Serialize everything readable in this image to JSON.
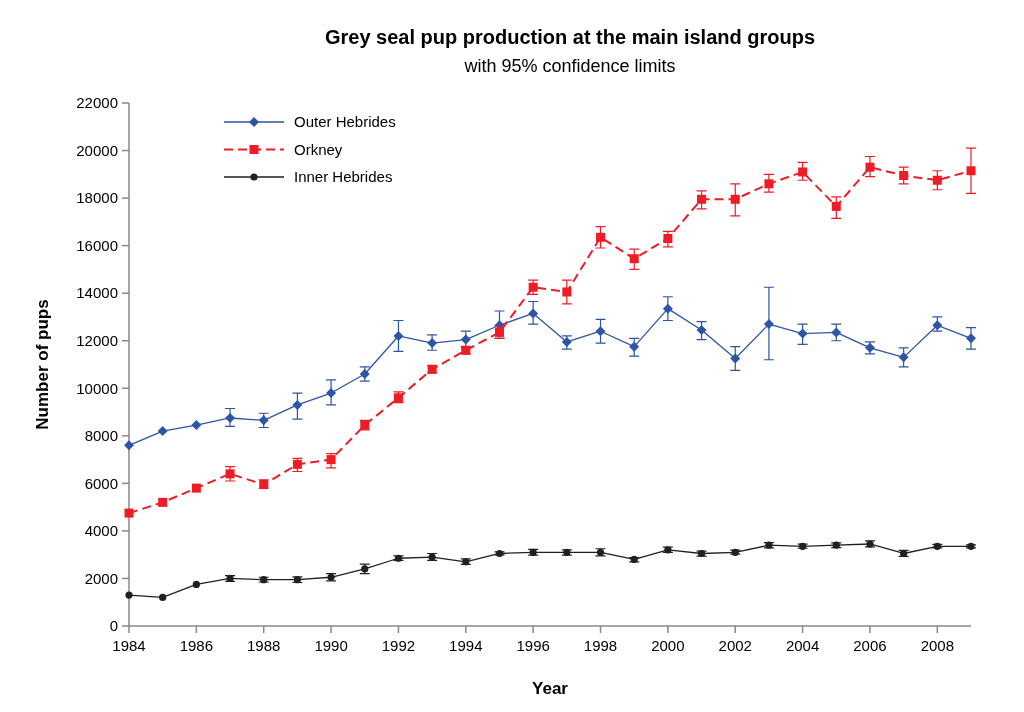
{
  "chart_data": {
    "type": "line",
    "title": "Grey seal pup production at the main island groups",
    "subtitle": "with 95% confidence limits",
    "xlabel": "Year",
    "ylabel": "Number of pups",
    "x": [
      1984,
      1985,
      1986,
      1987,
      1988,
      1989,
      1990,
      1991,
      1992,
      1993,
      1994,
      1995,
      1996,
      1997,
      1998,
      1999,
      2000,
      2001,
      2002,
      2003,
      2004,
      2005,
      2006,
      2007,
      2008,
      2009
    ],
    "xlim": [
      1984,
      2009
    ],
    "xticks": [
      1984,
      1986,
      1988,
      1990,
      1992,
      1994,
      1996,
      1998,
      2000,
      2002,
      2004,
      2006,
      2008
    ],
    "ylim": [
      0,
      22000
    ],
    "yticks": [
      0,
      2000,
      4000,
      6000,
      8000,
      10000,
      12000,
      14000,
      16000,
      18000,
      20000,
      22000
    ],
    "grid": false,
    "legend": "top left",
    "series": [
      {
        "name": "Outer Hebrides",
        "color": "#2e55a5",
        "marker": "diamond",
        "line_style": "solid",
        "values": [
          7600,
          8200,
          8450,
          8750,
          8650,
          9300,
          9800,
          10600,
          12200,
          11900,
          12050,
          12650,
          13150,
          11950,
          12400,
          11750,
          13350,
          12450,
          11250,
          12700,
          12300,
          12350,
          11700,
          11300,
          12650,
          12100
        ],
        "errors": [
          null,
          null,
          null,
          [
            8400,
            9150
          ],
          [
            8350,
            8950
          ],
          [
            8700,
            9800
          ],
          [
            9300,
            10350
          ],
          [
            10300,
            10900
          ],
          [
            11550,
            12850
          ],
          [
            11600,
            12250
          ],
          [
            11700,
            12400
          ],
          [
            12100,
            13250
          ],
          [
            12700,
            13650
          ],
          [
            11650,
            12200
          ],
          [
            11900,
            12900
          ],
          [
            11350,
            12100
          ],
          [
            12850,
            13850
          ],
          [
            12050,
            12800
          ],
          [
            10750,
            11750
          ],
          [
            11200,
            14250
          ],
          [
            11850,
            12700
          ],
          [
            12000,
            12700
          ],
          [
            11450,
            11950
          ],
          [
            10900,
            11700
          ],
          [
            12400,
            13000
          ],
          [
            11650,
            12550
          ]
        ]
      },
      {
        "name": "Orkney",
        "color": "#ee1c25",
        "marker": "square",
        "line_style": "dashed",
        "values": [
          4750,
          5200,
          5800,
          6400,
          5950,
          6800,
          7000,
          8450,
          9600,
          10800,
          11600,
          12350,
          14250,
          14050,
          16350,
          15450,
          16300,
          17950,
          17950,
          18600,
          19100,
          17650,
          19300,
          18950,
          18750,
          19150
        ],
        "errors": [
          null,
          null,
          null,
          [
            6100,
            6700
          ],
          [
            5800,
            6150
          ],
          [
            6500,
            7050
          ],
          [
            6650,
            7250
          ],
          [
            8250,
            8650
          ],
          [
            9400,
            9850
          ],
          [
            10650,
            10950
          ],
          [
            11450,
            11750
          ],
          [
            12100,
            12600
          ],
          [
            13950,
            14550
          ],
          [
            13550,
            14550
          ],
          [
            15900,
            16800
          ],
          [
            15000,
            15850
          ],
          [
            15950,
            16600
          ],
          [
            17550,
            18300
          ],
          [
            17250,
            18600
          ],
          [
            18250,
            19000
          ],
          [
            18750,
            19500
          ],
          [
            17150,
            18050
          ],
          [
            18900,
            19750
          ],
          [
            18600,
            19300
          ],
          [
            18350,
            19150
          ],
          [
            18200,
            20100
          ]
        ]
      },
      {
        "name": "Inner Hebrides",
        "color": "#231f20",
        "marker": "circle",
        "line_style": "solid",
        "values": [
          1300,
          1200,
          1750,
          2000,
          1950,
          1950,
          2050,
          2400,
          2850,
          2900,
          2700,
          3050,
          3100,
          3100,
          3100,
          2800,
          3200,
          3050,
          3100,
          3400,
          3350,
          3400,
          3450,
          3050,
          3350,
          3350
        ],
        "errors": [
          null,
          null,
          null,
          [
            1880,
            2120
          ],
          [
            1850,
            2050
          ],
          [
            1830,
            2070
          ],
          [
            1900,
            2200
          ],
          [
            2200,
            2600
          ],
          [
            2760,
            2950
          ],
          [
            2760,
            3050
          ],
          [
            2590,
            2820
          ],
          [
            2990,
            3120
          ],
          [
            2980,
            3220
          ],
          [
            2980,
            3200
          ],
          [
            2950,
            3250
          ],
          [
            2700,
            2880
          ],
          [
            3100,
            3320
          ],
          [
            2940,
            3150
          ],
          [
            3020,
            3190
          ],
          [
            3290,
            3510
          ],
          [
            3270,
            3440
          ],
          [
            3300,
            3500
          ],
          [
            3330,
            3580
          ],
          [
            2930,
            3180
          ],
          [
            3290,
            3430
          ],
          [
            3290,
            3410
          ]
        ]
      }
    ]
  }
}
